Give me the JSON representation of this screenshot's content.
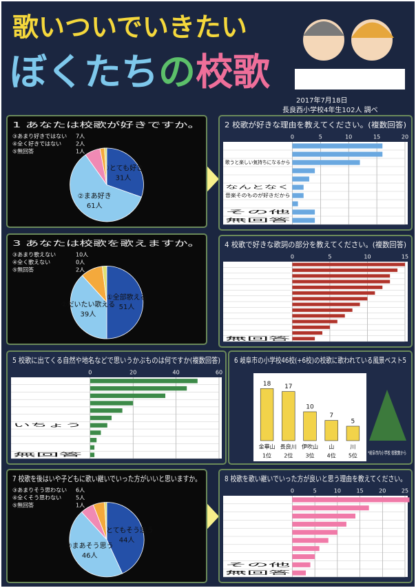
{
  "title": "歌いついでいきたい",
  "title2": {
    "part1": "ぼくたち",
    "part2": "の",
    "part3": "校歌"
  },
  "survey_date": "2017年7月18日",
  "survey_who": "長良西小学校4年生102人 調べ",
  "chart_data": [
    {
      "type": "pie",
      "title": "1 あなたは校歌が好きですか。",
      "categories": [
        "①とても好き",
        "②まあ好き",
        "③あまり好きではない",
        "④全く好きではない",
        "⑤無回答"
      ],
      "values": [
        31,
        61,
        7,
        2,
        1
      ],
      "value_labels": [
        "31人",
        "61人",
        "7人",
        "2人",
        "1人"
      ],
      "colors": [
        "#2450a8",
        "#8ecbef",
        "#f08ab4",
        "#f4a93c",
        "#e0e070"
      ]
    },
    {
      "type": "hbar",
      "title": "2 校歌が好きな理由を教えてください。(複数回答)",
      "categories": [
        null,
        null,
        "歌うと楽しい気持ちになるから",
        null,
        null,
        "なんとなく",
        "音楽そのものが好きだから",
        null,
        "その他",
        "無回答"
      ],
      "values": [
        16,
        16,
        12,
        4,
        3,
        2,
        2,
        1,
        4,
        4
      ],
      "xlim": [
        0,
        20
      ],
      "xticks": [
        0,
        5,
        10,
        15,
        20
      ],
      "color": "#6aa8e0"
    },
    {
      "type": "pie",
      "title": "3 あなたは校歌を歌えますか。",
      "categories": [
        "①全部歌える",
        "②だいたい歌える",
        "③あまり歌えない",
        "④全く歌えない",
        "⑤無回答"
      ],
      "values": [
        51,
        39,
        10,
        0,
        2
      ],
      "value_labels": [
        "51人",
        "39人",
        "10人",
        "0人",
        "2人"
      ],
      "colors": [
        "#2450a8",
        "#8ecbef",
        "#f4a93c",
        "#f08ab4",
        "#e0e070"
      ]
    },
    {
      "type": "hbar",
      "title": "4 校歌で好きな歌詞の部分を教えてください。(複数回答)",
      "categories": [
        null,
        null,
        null,
        null,
        null,
        null,
        null,
        null,
        null,
        null,
        null,
        null,
        null,
        "無回答"
      ],
      "values": [
        15,
        14,
        13,
        13,
        12,
        11,
        10,
        9,
        8,
        7,
        6,
        5,
        4,
        3
      ],
      "xlim": [
        0,
        15
      ],
      "xticks": [
        0,
        5,
        10,
        15
      ],
      "color": "#b0332a"
    },
    {
      "type": "hbar",
      "title": "5 校歌に出てくる自然や地名などで思いうかぶものは何ですか(複数回答)",
      "categories": [
        null,
        null,
        null,
        null,
        null,
        null,
        "いちょう",
        null,
        null,
        null,
        "無回答"
      ],
      "values": [
        50,
        45,
        35,
        20,
        15,
        10,
        8,
        5,
        3,
        2,
        2
      ],
      "xlim": [
        0,
        60
      ],
      "xticks": [
        0,
        20,
        40,
        60
      ],
      "color": "#3c8a48"
    },
    {
      "type": "vbar",
      "title": "6 岐阜市の小学校46校(+6校)の校歌に歌われている風景ベスト5",
      "categories": [
        "金華山",
        "長良川",
        "伊吹山",
        "山",
        "川"
      ],
      "ranks": [
        "1位",
        "2位",
        "3位",
        "4位",
        "5位"
      ],
      "values": [
        18,
        17,
        10,
        7,
        5
      ],
      "ylim": [
        0,
        20
      ],
      "color": "#f2d34a",
      "note": "*岐阜市内小学校 校歌集から"
    },
    {
      "type": "pie",
      "title": "7 校歌を後はいや子どもに歌い継いでいった方がいいと思いますか。",
      "categories": [
        "①とてもそう思う",
        "②まあそう思う",
        "③あまりそう思わない",
        "④全くそう思わない",
        "⑤無回答"
      ],
      "values": [
        44,
        46,
        6,
        5,
        1
      ],
      "value_labels": [
        "44人",
        "46人",
        "6人",
        "5人",
        "1人"
      ],
      "colors": [
        "#2450a8",
        "#8ecbef",
        "#f08ab4",
        "#f4a93c",
        "#e0e070"
      ]
    },
    {
      "type": "hbar",
      "title": "8 校歌を歌い継いでいった方が良いと思う理由を教えてください。",
      "categories": [
        null,
        null,
        null,
        null,
        null,
        null,
        null,
        null,
        "その他",
        "無回答"
      ],
      "values": [
        26,
        17,
        14,
        12,
        10,
        8,
        6,
        5,
        4,
        3
      ],
      "xlim": [
        0,
        25
      ],
      "xticks": [
        0,
        5,
        10,
        15,
        20,
        25
      ],
      "color": "#f07aa8"
    }
  ]
}
